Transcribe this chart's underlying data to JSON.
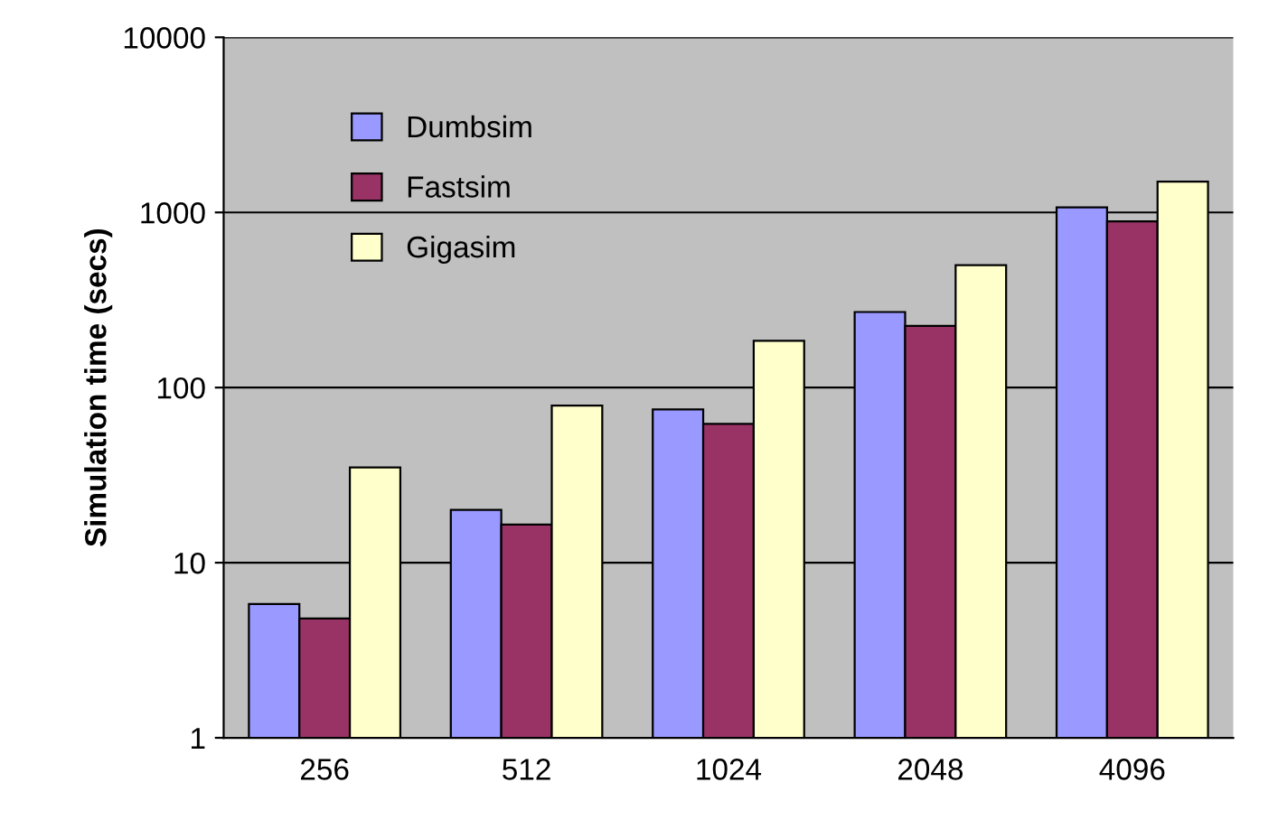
{
  "chart_data": {
    "type": "bar",
    "ylabel": "Simulation time (secs)",
    "categories": [
      "256",
      "512",
      "1024",
      "2048",
      "4096"
    ],
    "series": [
      {
        "name": "Dumbsim",
        "color": "#9999ff",
        "values": [
          5.8,
          20,
          75,
          270,
          1070
        ]
      },
      {
        "name": "Fastsim",
        "color": "#993366",
        "values": [
          4.8,
          16.5,
          62,
          225,
          890
        ]
      },
      {
        "name": "Gigasim",
        "color": "#ffffcc",
        "values": [
          35,
          79,
          185,
          500,
          1500
        ]
      }
    ],
    "log": "y",
    "ylim": [
      1,
      10000
    ],
    "yticks": [
      1,
      10,
      100,
      1000,
      10000
    ],
    "grid": "y",
    "legend": "top left"
  }
}
